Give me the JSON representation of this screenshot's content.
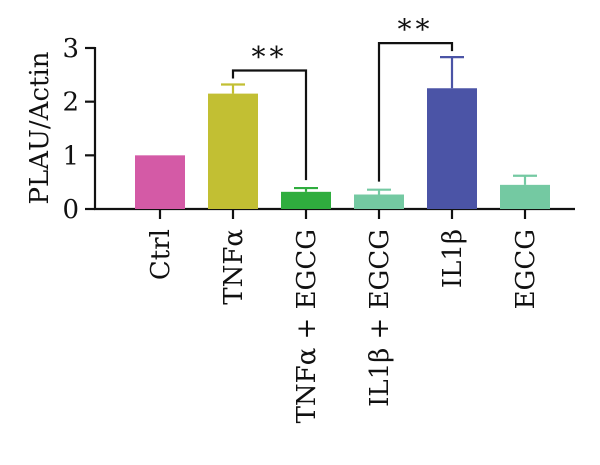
{
  "chart_data": {
    "type": "bar",
    "title": "",
    "xlabel": "",
    "ylabel": "PLAU/Actin",
    "ylim": [
      0,
      3
    ],
    "yticks": [
      0,
      1,
      2,
      3
    ],
    "ytick_labels": [
      "0",
      "1",
      "2",
      "3"
    ],
    "grid": false,
    "categories": [
      "Ctrl",
      "TNFα",
      "TNFα + EGCG",
      "IL1β + EGCG",
      "IL1β",
      "EGCG"
    ],
    "values": [
      1.0,
      2.15,
      0.32,
      0.27,
      2.25,
      0.45
    ],
    "errors": [
      0.0,
      0.17,
      0.07,
      0.09,
      0.58,
      0.17
    ],
    "colors": [
      "#d45aa6",
      "#c2bf33",
      "#2fad3e",
      "#74c9a2",
      "#4b54a6",
      "#74c9a2"
    ],
    "significance": [
      {
        "from": "TNFα",
        "to": "TNFα + EGCG",
        "label": "**"
      },
      {
        "from": "IL1β + EGCG",
        "to": "IL1β",
        "label": "**"
      }
    ]
  }
}
